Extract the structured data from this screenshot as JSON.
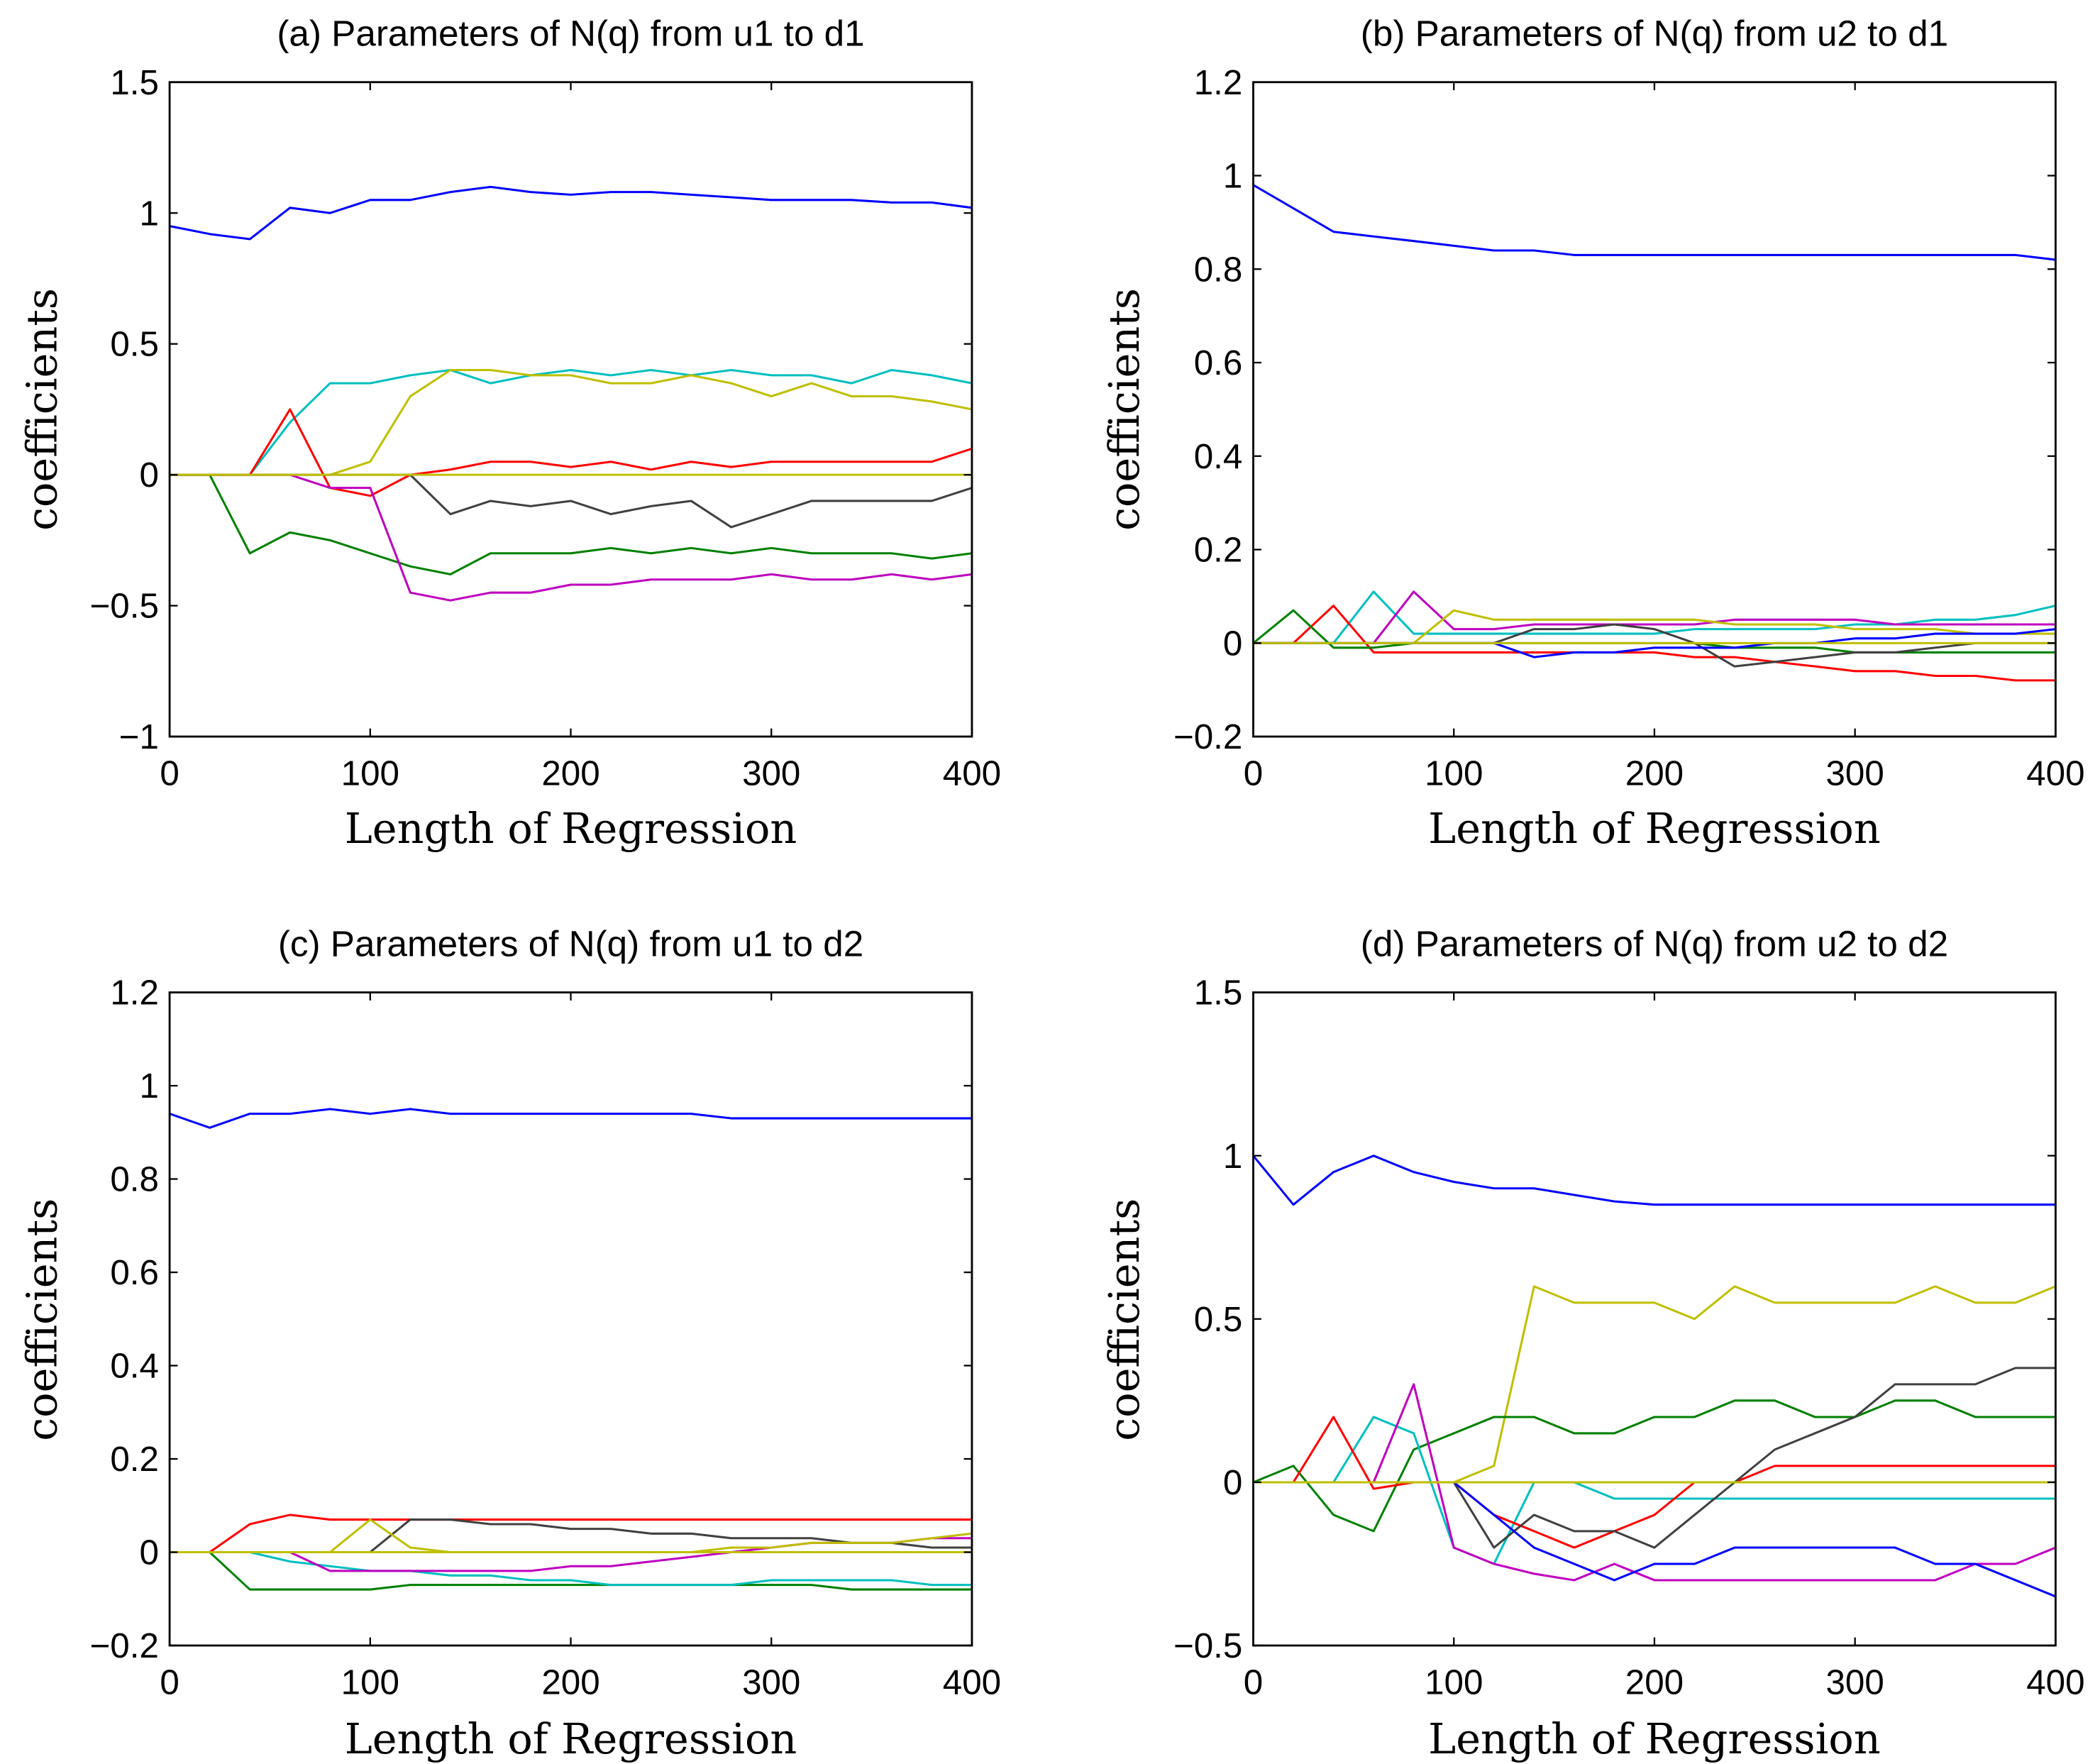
{
  "colors": {
    "blue": "#0000ff",
    "green": "#008000",
    "red": "#ff0000",
    "cyan": "#00bfbf",
    "magenta": "#bf00bf",
    "yellow": "#bfbf00",
    "gray": "#404040"
  },
  "chart_data": [
    {
      "type": "line",
      "title": "(a) Parameters of N(q) from u1 to d1",
      "xlabel": "Length of Regression",
      "ylabel": "coefficients",
      "xlim": [
        0,
        400
      ],
      "ylim": [
        -1,
        1.5
      ],
      "xticks": [
        0,
        100,
        200,
        300,
        400
      ],
      "xtick_labels": [
        "0",
        "100",
        "200",
        "300",
        "400"
      ],
      "yticks": [
        -1,
        -0.5,
        0,
        0.5,
        1,
        1.5
      ],
      "ytick_labels": [
        "−1",
        "−0.5",
        "0",
        "0.5",
        "1",
        "1.5"
      ],
      "grid": false,
      "x": [
        0,
        20,
        40,
        60,
        80,
        100,
        120,
        140,
        160,
        180,
        200,
        220,
        240,
        260,
        280,
        300,
        320,
        340,
        360,
        380,
        400
      ],
      "series": [
        {
          "color": "blue",
          "values": [
            0.95,
            0.92,
            0.9,
            1.02,
            1.0,
            1.05,
            1.05,
            1.08,
            1.1,
            1.08,
            1.07,
            1.08,
            1.08,
            1.07,
            1.06,
            1.05,
            1.05,
            1.05,
            1.04,
            1.04,
            1.02
          ]
        },
        {
          "color": "cyan",
          "values": [
            0,
            0,
            0,
            0.2,
            0.35,
            0.35,
            0.38,
            0.4,
            0.35,
            0.38,
            0.4,
            0.38,
            0.4,
            0.38,
            0.4,
            0.38,
            0.38,
            0.35,
            0.4,
            0.38,
            0.35
          ]
        },
        {
          "color": "yellow",
          "values": [
            0,
            0,
            0,
            0,
            0,
            0.05,
            0.3,
            0.4,
            0.4,
            0.38,
            0.38,
            0.35,
            0.35,
            0.38,
            0.35,
            0.3,
            0.35,
            0.3,
            0.3,
            0.28,
            0.25
          ]
        },
        {
          "color": "red",
          "values": [
            0,
            0,
            0,
            0.25,
            -0.05,
            -0.08,
            0,
            0.02,
            0.05,
            0.05,
            0.03,
            0.05,
            0.02,
            0.05,
            0.03,
            0.05,
            0.05,
            0.05,
            0.05,
            0.05,
            0.1
          ]
        },
        {
          "color": "green",
          "values": [
            0,
            0,
            -0.3,
            -0.22,
            -0.25,
            -0.3,
            -0.35,
            -0.38,
            -0.3,
            -0.3,
            -0.3,
            -0.28,
            -0.3,
            -0.28,
            -0.3,
            -0.28,
            -0.3,
            -0.3,
            -0.3,
            -0.32,
            -0.3
          ]
        },
        {
          "color": "magenta",
          "values": [
            0,
            0,
            0,
            0,
            -0.05,
            -0.05,
            -0.45,
            -0.48,
            -0.45,
            -0.45,
            -0.42,
            -0.42,
            -0.4,
            -0.4,
            -0.4,
            -0.38,
            -0.4,
            -0.4,
            -0.38,
            -0.4,
            -0.38
          ]
        },
        {
          "color": "gray",
          "values": [
            0,
            0,
            0,
            0,
            0,
            0,
            0,
            -0.15,
            -0.1,
            -0.12,
            -0.1,
            -0.15,
            -0.12,
            -0.1,
            -0.2,
            -0.15,
            -0.1,
            -0.1,
            -0.1,
            -0.1,
            -0.05
          ]
        },
        {
          "color": "yellow",
          "values": [
            0,
            0,
            0,
            0,
            0,
            0,
            0,
            0,
            0,
            0,
            0,
            0,
            0,
            0,
            0,
            0,
            0,
            0,
            0,
            0,
            0
          ]
        }
      ]
    },
    {
      "type": "line",
      "title": "(b) Parameters of N(q) from u2 to d1",
      "xlabel": "Length of Regression",
      "ylabel": "coefficients",
      "xlim": [
        0,
        400
      ],
      "ylim": [
        -0.2,
        1.2
      ],
      "xticks": [
        0,
        100,
        200,
        300,
        400
      ],
      "xtick_labels": [
        "0",
        "100",
        "200",
        "300",
        "400"
      ],
      "yticks": [
        -0.2,
        0,
        0.2,
        0.4,
        0.6,
        0.8,
        1,
        1.2
      ],
      "ytick_labels": [
        "−0.2",
        "0",
        "0.2",
        "0.4",
        "0.6",
        "0.8",
        "1",
        "1.2"
      ],
      "grid": false,
      "x": [
        0,
        20,
        40,
        60,
        80,
        100,
        120,
        140,
        160,
        180,
        200,
        220,
        240,
        260,
        280,
        300,
        320,
        340,
        360,
        380,
        400
      ],
      "series": [
        {
          "color": "blue",
          "values": [
            0.98,
            0.93,
            0.88,
            0.87,
            0.86,
            0.85,
            0.84,
            0.84,
            0.83,
            0.83,
            0.83,
            0.83,
            0.83,
            0.83,
            0.83,
            0.83,
            0.83,
            0.83,
            0.83,
            0.83,
            0.82
          ]
        },
        {
          "color": "cyan",
          "values": [
            0,
            0,
            0,
            0.11,
            0.02,
            0.02,
            0.02,
            0.02,
            0.02,
            0.02,
            0.02,
            0.03,
            0.03,
            0.03,
            0.03,
            0.04,
            0.04,
            0.05,
            0.05,
            0.06,
            0.08
          ]
        },
        {
          "color": "magenta",
          "values": [
            0,
            0,
            0,
            0,
            0.11,
            0.03,
            0.03,
            0.04,
            0.04,
            0.04,
            0.04,
            0.04,
            0.05,
            0.05,
            0.05,
            0.05,
            0.04,
            0.04,
            0.04,
            0.04,
            0.04
          ]
        },
        {
          "color": "yellow",
          "values": [
            0,
            0,
            0,
            0,
            0,
            0.07,
            0.05,
            0.05,
            0.05,
            0.05,
            0.05,
            0.05,
            0.04,
            0.04,
            0.04,
            0.03,
            0.03,
            0.03,
            0.02,
            0.02,
            0.02
          ]
        },
        {
          "color": "red",
          "values": [
            0,
            0,
            0.08,
            -0.02,
            -0.02,
            -0.02,
            -0.02,
            -0.02,
            -0.02,
            -0.02,
            -0.02,
            -0.03,
            -0.03,
            -0.04,
            -0.05,
            -0.06,
            -0.06,
            -0.07,
            -0.07,
            -0.08,
            -0.08
          ]
        },
        {
          "color": "green",
          "values": [
            0,
            0.07,
            -0.01,
            -0.01,
            0,
            0,
            0,
            0,
            0,
            0,
            0,
            0,
            -0.01,
            -0.01,
            -0.01,
            -0.02,
            -0.02,
            -0.02,
            -0.02,
            -0.02,
            -0.02
          ]
        },
        {
          "color": "gray",
          "values": [
            0,
            0,
            0,
            0,
            0,
            0,
            0,
            0.03,
            0.03,
            0.04,
            0.03,
            0,
            -0.05,
            -0.04,
            -0.03,
            -0.02,
            -0.02,
            -0.01,
            0,
            0,
            0
          ]
        },
        {
          "color": "blue",
          "values": [
            0,
            0,
            0,
            0,
            0,
            0,
            0,
            -0.03,
            -0.02,
            -0.02,
            -0.01,
            -0.01,
            -0.01,
            0,
            0,
            0.01,
            0.01,
            0.02,
            0.02,
            0.02,
            0.03
          ]
        },
        {
          "color": "yellow",
          "values": [
            0,
            0,
            0,
            0,
            0,
            0,
            0,
            0,
            0,
            0,
            0,
            0,
            0,
            0,
            0,
            0,
            0,
            0,
            0,
            0,
            0
          ]
        }
      ]
    },
    {
      "type": "line",
      "title": "(c) Parameters of N(q) from u1 to d2",
      "xlabel": "Length of Regression",
      "ylabel": "coefficients",
      "xlim": [
        0,
        400
      ],
      "ylim": [
        -0.2,
        1.2
      ],
      "xticks": [
        0,
        100,
        200,
        300,
        400
      ],
      "xtick_labels": [
        "0",
        "100",
        "200",
        "300",
        "400"
      ],
      "yticks": [
        -0.2,
        0,
        0.2,
        0.4,
        0.6,
        0.8,
        1,
        1.2
      ],
      "ytick_labels": [
        "−0.2",
        "0",
        "0.2",
        "0.4",
        "0.6",
        "0.8",
        "1",
        "1.2"
      ],
      "grid": false,
      "x": [
        0,
        20,
        40,
        60,
        80,
        100,
        120,
        140,
        160,
        180,
        200,
        220,
        240,
        260,
        280,
        300,
        320,
        340,
        360,
        380,
        400
      ],
      "series": [
        {
          "color": "blue",
          "values": [
            0.94,
            0.91,
            0.94,
            0.94,
            0.95,
            0.94,
            0.95,
            0.94,
            0.94,
            0.94,
            0.94,
            0.94,
            0.94,
            0.94,
            0.93,
            0.93,
            0.93,
            0.93,
            0.93,
            0.93,
            0.93
          ]
        },
        {
          "color": "red",
          "values": [
            0,
            0,
            0.06,
            0.08,
            0.07,
            0.07,
            0.07,
            0.07,
            0.07,
            0.07,
            0.07,
            0.07,
            0.07,
            0.07,
            0.07,
            0.07,
            0.07,
            0.07,
            0.07,
            0.07,
            0.07
          ]
        },
        {
          "color": "green",
          "values": [
            0,
            0,
            -0.08,
            -0.08,
            -0.08,
            -0.08,
            -0.07,
            -0.07,
            -0.07,
            -0.07,
            -0.07,
            -0.07,
            -0.07,
            -0.07,
            -0.07,
            -0.07,
            -0.07,
            -0.08,
            -0.08,
            -0.08,
            -0.08
          ]
        },
        {
          "color": "cyan",
          "values": [
            0,
            0,
            0,
            -0.02,
            -0.03,
            -0.04,
            -0.04,
            -0.05,
            -0.05,
            -0.06,
            -0.06,
            -0.07,
            -0.07,
            -0.07,
            -0.07,
            -0.06,
            -0.06,
            -0.06,
            -0.06,
            -0.07,
            -0.07
          ]
        },
        {
          "color": "magenta",
          "values": [
            0,
            0,
            0,
            0,
            -0.04,
            -0.04,
            -0.04,
            -0.04,
            -0.04,
            -0.04,
            -0.03,
            -0.03,
            -0.02,
            -0.01,
            0,
            0.01,
            0.02,
            0.02,
            0.02,
            0.03,
            0.03
          ]
        },
        {
          "color": "gray",
          "values": [
            0,
            0,
            0,
            0,
            0,
            0,
            0.07,
            0.07,
            0.06,
            0.06,
            0.05,
            0.05,
            0.04,
            0.04,
            0.03,
            0.03,
            0.03,
            0.02,
            0.02,
            0.01,
            0.01
          ]
        },
        {
          "color": "yellow",
          "values": [
            0,
            0,
            0,
            0,
            0,
            0.07,
            0.01,
            0,
            0,
            0,
            0,
            0,
            0,
            0,
            0.01,
            0.01,
            0.02,
            0.02,
            0.02,
            0.03,
            0.04
          ]
        },
        {
          "color": "yellow",
          "values": [
            0,
            0,
            0,
            0,
            0,
            0,
            0,
            0,
            0,
            0,
            0,
            0,
            0,
            0,
            0,
            0,
            0,
            0,
            0,
            0,
            0
          ]
        }
      ]
    },
    {
      "type": "line",
      "title": "(d) Parameters of N(q) from u2 to d2",
      "xlabel": "Length of Regression",
      "ylabel": "coefficients",
      "xlim": [
        0,
        400
      ],
      "ylim": [
        -0.5,
        1.5
      ],
      "xticks": [
        0,
        100,
        200,
        300,
        400
      ],
      "xtick_labels": [
        "0",
        "100",
        "200",
        "300",
        "400"
      ],
      "yticks": [
        -0.5,
        0,
        0.5,
        1,
        1.5
      ],
      "ytick_labels": [
        "−0.5",
        "0",
        "0.5",
        "1",
        "1.5"
      ],
      "grid": false,
      "x": [
        0,
        20,
        40,
        60,
        80,
        100,
        120,
        140,
        160,
        180,
        200,
        220,
        240,
        260,
        280,
        300,
        320,
        340,
        360,
        380,
        400
      ],
      "series": [
        {
          "color": "blue",
          "values": [
            1.0,
            0.85,
            0.95,
            1.0,
            0.95,
            0.92,
            0.9,
            0.9,
            0.88,
            0.86,
            0.85,
            0.85,
            0.85,
            0.85,
            0.85,
            0.85,
            0.85,
            0.85,
            0.85,
            0.85,
            0.85
          ]
        },
        {
          "color": "yellow",
          "values": [
            0,
            0,
            0,
            0,
            0,
            0,
            0.05,
            0.6,
            0.55,
            0.55,
            0.55,
            0.5,
            0.6,
            0.55,
            0.55,
            0.55,
            0.55,
            0.6,
            0.55,
            0.55,
            0.6
          ]
        },
        {
          "color": "green",
          "values": [
            0,
            0.05,
            -0.1,
            -0.15,
            0.1,
            0.15,
            0.2,
            0.2,
            0.15,
            0.15,
            0.2,
            0.2,
            0.25,
            0.25,
            0.2,
            0.2,
            0.25,
            0.25,
            0.2,
            0.2,
            0.2
          ]
        },
        {
          "color": "cyan",
          "values": [
            0,
            0,
            0,
            0.2,
            0.15,
            -0.2,
            -0.25,
            0,
            0,
            -0.05,
            -0.05,
            -0.05,
            -0.05,
            -0.05,
            -0.05,
            -0.05,
            -0.05,
            -0.05,
            -0.05,
            -0.05,
            -0.05
          ]
        },
        {
          "color": "magenta",
          "values": [
            0,
            0,
            0,
            0,
            0.3,
            -0.2,
            -0.25,
            -0.28,
            -0.3,
            -0.25,
            -0.3,
            -0.3,
            -0.3,
            -0.3,
            -0.3,
            -0.3,
            -0.3,
            -0.3,
            -0.25,
            -0.25,
            -0.2
          ]
        },
        {
          "color": "red",
          "values": [
            0,
            0,
            0.2,
            -0.02,
            0,
            0,
            -0.1,
            -0.15,
            -0.2,
            -0.15,
            -0.1,
            0,
            0,
            0.05,
            0.05,
            0.05,
            0.05,
            0.05,
            0.05,
            0.05,
            0.05
          ]
        },
        {
          "color": "gray",
          "values": [
            0,
            0,
            0,
            0,
            0,
            0,
            -0.2,
            -0.1,
            -0.15,
            -0.15,
            -0.2,
            -0.1,
            0,
            0.1,
            0.15,
            0.2,
            0.3,
            0.3,
            0.3,
            0.35,
            0.35
          ]
        },
        {
          "color": "blue",
          "values": [
            0,
            0,
            0,
            0,
            0,
            0,
            -0.1,
            -0.2,
            -0.25,
            -0.3,
            -0.25,
            -0.25,
            -0.2,
            -0.2,
            -0.2,
            -0.2,
            -0.2,
            -0.25,
            -0.25,
            -0.3,
            -0.35
          ]
        },
        {
          "color": "yellow",
          "values": [
            0,
            0,
            0,
            0,
            0,
            0,
            0,
            0,
            0,
            0,
            0,
            0,
            0,
            0,
            0,
            0,
            0,
            0,
            0,
            0,
            0
          ]
        }
      ]
    }
  ]
}
